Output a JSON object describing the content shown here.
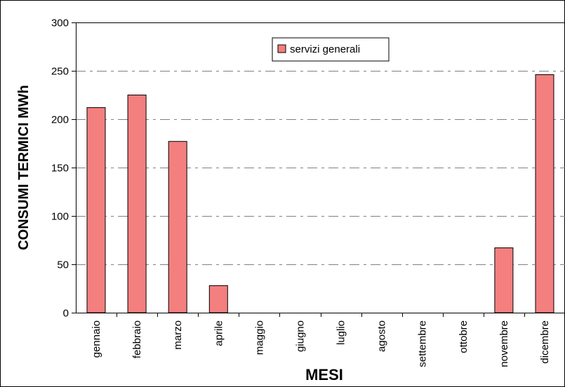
{
  "chart_data": {
    "type": "bar",
    "categories": [
      "gennaio",
      "febbraio",
      "marzo",
      "aprile",
      "maggio",
      "giugno",
      "luglio",
      "agosto",
      "settembre",
      "ottobre",
      "novembre",
      "dicembre"
    ],
    "series": [
      {
        "name": "servizi generali",
        "values": [
          212,
          225,
          177,
          28,
          0,
          0,
          0,
          0,
          0,
          0,
          67,
          246
        ],
        "color": "#f37f7f"
      }
    ],
    "xlabel": "MESI",
    "ylabel": "CONSUMI TERMICI MWh",
    "ylim": [
      0,
      300
    ],
    "yticks": [
      0,
      50,
      100,
      150,
      200,
      250,
      300
    ],
    "grid": "dashed horizontal",
    "legend_position": "top-center"
  }
}
